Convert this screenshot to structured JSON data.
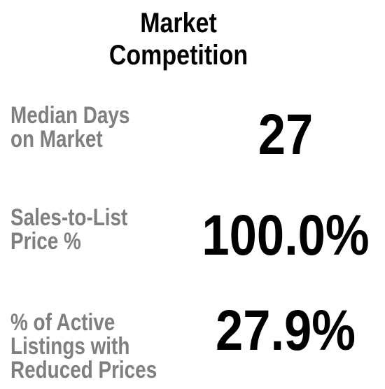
{
  "title": [
    "Market",
    "Competition"
  ],
  "metrics": [
    {
      "label": [
        "Median Days",
        "on Market"
      ],
      "value": "27"
    },
    {
      "label": [
        "Sales-to-List",
        "Price %"
      ],
      "value": "100.0%"
    },
    {
      "label": [
        "% of Active",
        "Listings with",
        "Reduced Prices"
      ],
      "value": "27.9%"
    }
  ]
}
